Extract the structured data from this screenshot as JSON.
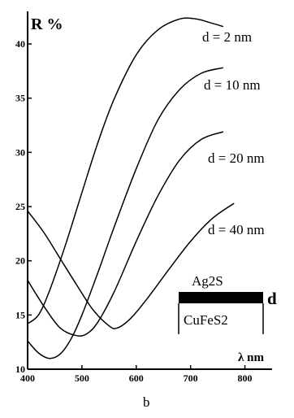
{
  "chart_data": {
    "type": "line",
    "ylabel": "R %",
    "xlabel": "λ nm",
    "panel_label": "b",
    "xlim": [
      400,
      850
    ],
    "ylim": [
      10,
      43
    ],
    "x_ticks": [
      "400",
      "500",
      "600",
      "700",
      "800"
    ],
    "y_ticks": [
      "10",
      "15",
      "20",
      "25",
      "30",
      "35",
      "40"
    ],
    "series": [
      {
        "name": "d = 2 nm",
        "x": [
          400,
          420,
          440,
          470,
          500,
          530,
          560,
          600,
          640,
          680,
          710,
          740,
          760
        ],
        "y": [
          14.2,
          15.0,
          17.2,
          21.5,
          26.3,
          31.0,
          35.0,
          39.0,
          41.3,
          42.3,
          42.3,
          41.9,
          41.6
        ]
      },
      {
        "name": "d = 10 nm",
        "x": [
          400,
          420,
          440,
          460,
          480,
          500,
          530,
          560,
          600,
          640,
          680,
          720,
          760
        ],
        "y": [
          12.6,
          11.5,
          11.0,
          11.4,
          12.8,
          15.0,
          19.0,
          23.2,
          28.5,
          33.0,
          35.8,
          37.3,
          37.8
        ]
      },
      {
        "name": "d = 20 nm",
        "x": [
          400,
          430,
          460,
          490,
          510,
          530,
          560,
          600,
          640,
          680,
          720,
          760
        ],
        "y": [
          18.2,
          15.8,
          13.8,
          13.1,
          13.3,
          14.4,
          17.2,
          21.8,
          26.0,
          29.3,
          31.2,
          31.9
        ]
      },
      {
        "name": "d = 40 nm",
        "x": [
          400,
          430,
          460,
          490,
          520,
          550,
          565,
          590,
          620,
          660,
          700,
          740,
          780
        ],
        "y": [
          24.6,
          22.6,
          20.2,
          17.8,
          15.5,
          14.0,
          13.8,
          14.7,
          16.5,
          19.2,
          21.8,
          23.9,
          25.3
        ]
      }
    ],
    "inset": {
      "top_layer": "Ag2S",
      "bottom_layer": "CuFeS2",
      "thickness_label": "d"
    }
  }
}
